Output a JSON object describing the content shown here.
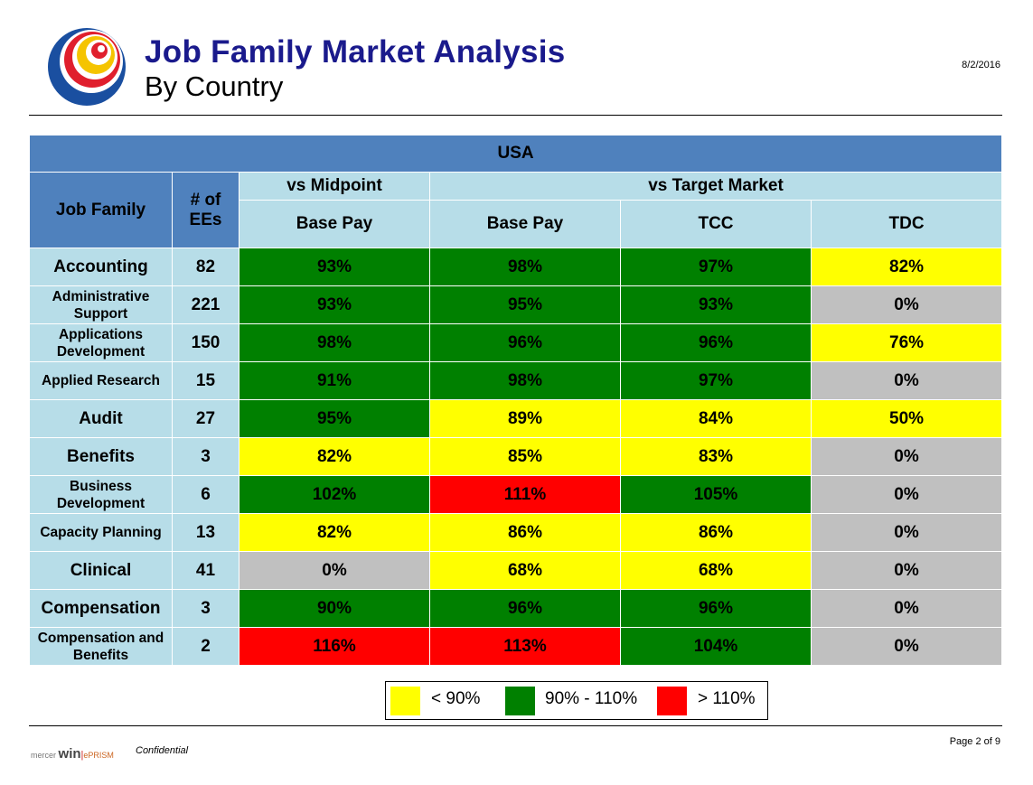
{
  "header": {
    "title": "Job Family Market Analysis",
    "subtitle": "By Country",
    "date": "8/2/2016"
  },
  "table": {
    "country": "USA",
    "col_job_family": "Job Family",
    "col_ees_line1": "# of",
    "col_ees_line2": "EEs",
    "group_midpoint": "vs Midpoint",
    "group_target": "vs Target Market",
    "sub_base_pay_mid": "Base Pay",
    "sub_base_pay_target": "Base Pay",
    "sub_tcc": "TCC",
    "sub_tdc": "TDC",
    "rows": [
      {
        "family": "Accounting",
        "size": "big",
        "ees": "82",
        "mid": "93%",
        "mid_c": "green",
        "base": "98%",
        "base_c": "green",
        "tcc": "97%",
        "tcc_c": "green",
        "tdc": "82%",
        "tdc_c": "yellow"
      },
      {
        "family": "Administrative Support",
        "size": "small",
        "ees": "221",
        "mid": "93%",
        "mid_c": "green",
        "base": "95%",
        "base_c": "green",
        "tcc": "93%",
        "tcc_c": "green",
        "tdc": "0%",
        "tdc_c": "gray"
      },
      {
        "family": "Applications Development",
        "size": "small",
        "ees": "150",
        "mid": "98%",
        "mid_c": "green",
        "base": "96%",
        "base_c": "green",
        "tcc": "96%",
        "tcc_c": "green",
        "tdc": "76%",
        "tdc_c": "yellow"
      },
      {
        "family": "Applied Research",
        "size": "small",
        "ees": "15",
        "mid": "91%",
        "mid_c": "green",
        "base": "98%",
        "base_c": "green",
        "tcc": "97%",
        "tcc_c": "green",
        "tdc": "0%",
        "tdc_c": "gray"
      },
      {
        "family": "Audit",
        "size": "big",
        "ees": "27",
        "mid": "95%",
        "mid_c": "green",
        "base": "89%",
        "base_c": "yellow",
        "tcc": "84%",
        "tcc_c": "yellow",
        "tdc": "50%",
        "tdc_c": "yellow"
      },
      {
        "family": "Benefits",
        "size": "big",
        "ees": "3",
        "mid": "82%",
        "mid_c": "yellow",
        "base": "85%",
        "base_c": "yellow",
        "tcc": "83%",
        "tcc_c": "yellow",
        "tdc": "0%",
        "tdc_c": "gray"
      },
      {
        "family": "Business Development",
        "size": "small",
        "ees": "6",
        "mid": "102%",
        "mid_c": "green",
        "base": "111%",
        "base_c": "red",
        "tcc": "105%",
        "tcc_c": "green",
        "tdc": "0%",
        "tdc_c": "gray"
      },
      {
        "family": "Capacity Planning",
        "size": "small",
        "ees": "13",
        "mid": "82%",
        "mid_c": "yellow",
        "base": "86%",
        "base_c": "yellow",
        "tcc": "86%",
        "tcc_c": "yellow",
        "tdc": "0%",
        "tdc_c": "gray"
      },
      {
        "family": "Clinical",
        "size": "big",
        "ees": "41",
        "mid": "0%",
        "mid_c": "gray",
        "base": "68%",
        "base_c": "yellow",
        "tcc": "68%",
        "tcc_c": "yellow",
        "tdc": "0%",
        "tdc_c": "gray"
      },
      {
        "family": "Compensation",
        "size": "big",
        "ees": "3",
        "mid": "90%",
        "mid_c": "green",
        "base": "96%",
        "base_c": "green",
        "tcc": "96%",
        "tcc_c": "green",
        "tdc": "0%",
        "tdc_c": "gray"
      },
      {
        "family": "Compensation and Benefits",
        "size": "small",
        "ees": "2",
        "mid": "116%",
        "mid_c": "red",
        "base": "113%",
        "base_c": "red",
        "tcc": "104%",
        "tcc_c": "green",
        "tdc": "0%",
        "tdc_c": "gray"
      }
    ]
  },
  "legend": {
    "low": "< 90%",
    "mid": "90%  -  110%",
    "high": "> 110%",
    "low_color": "#ffff00",
    "mid_color": "#008000",
    "high_color": "#ff0000"
  },
  "footer": {
    "brand_mercer": "mercer",
    "brand_win": "win",
    "brand_eprism": "ePRISM",
    "confidential": "Confidential",
    "page": "Page 2 of 9"
  }
}
